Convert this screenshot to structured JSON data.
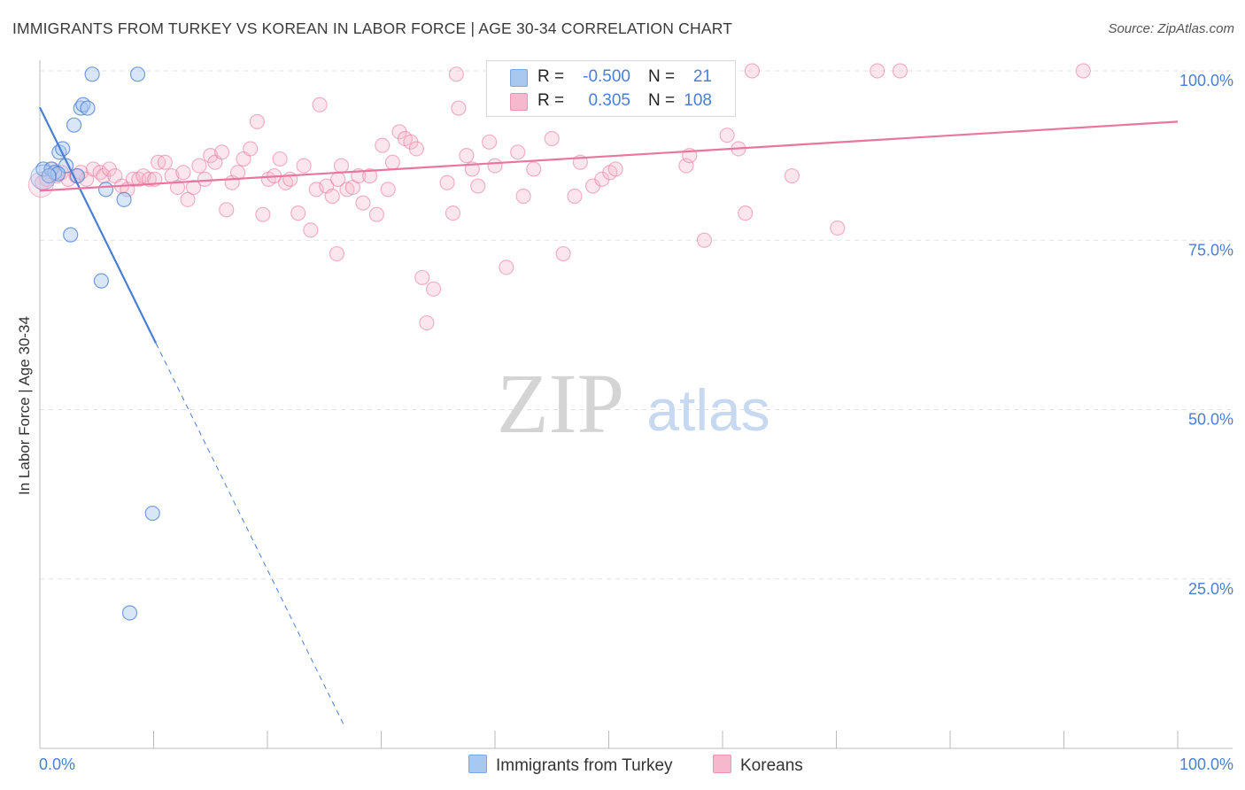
{
  "header": {
    "title": "IMMIGRANTS FROM TURKEY VS KOREAN IN LABOR FORCE | AGE 30-34 CORRELATION CHART",
    "source": "Source: ZipAtlas.com"
  },
  "watermark": {
    "zip": "ZIP",
    "atlas": "atlas"
  },
  "legend": {
    "rows": [
      {
        "r_label": "R =",
        "r_value": "-0.500",
        "n_label": "N =",
        "n_value": "21",
        "color": "#a8c8f0"
      },
      {
        "r_label": "R =",
        "r_value": "0.305",
        "n_label": "N =",
        "n_value": "108",
        "color": "#f6b8cc"
      }
    ]
  },
  "bottom_legend": {
    "series1": "Immigrants from Turkey",
    "series2": "Koreans"
  },
  "chart_data": {
    "type": "scatter",
    "title": "IMMIGRANTS FROM TURKEY VS KOREAN IN LABOR FORCE | AGE 30-34 CORRELATION CHART",
    "xlabel": "",
    "ylabel": "In Labor Force | Age 30-34",
    "xlim": [
      0,
      100
    ],
    "ylim": [
      0,
      100
    ],
    "x_tick_labels": [
      "0.0%",
      "100.0%"
    ],
    "y_ticks": [
      25,
      50,
      75,
      100
    ],
    "y_tick_labels": [
      "25.0%",
      "50.0%",
      "75.0%",
      "100.0%"
    ],
    "grid": true,
    "colors": {
      "series1": "#4a7fd4",
      "series2": "#e8769e",
      "tick_text": "#4a7fd4"
    },
    "series": [
      {
        "name": "Immigrants from Turkey",
        "R": -0.5,
        "N": 21,
        "trend": {
          "x0": 0,
          "y0": 94.6,
          "x_solid_end": 10.2,
          "x_dash_end": 26.8
        },
        "points": [
          [
            0.3,
            85.5
          ],
          [
            1.0,
            85.5
          ],
          [
            1.3,
            85.0
          ],
          [
            1.7,
            88.0
          ],
          [
            2.0,
            88.5
          ],
          [
            2.3,
            86.0
          ],
          [
            2.7,
            75.8
          ],
          [
            3.0,
            92.0
          ],
          [
            3.3,
            84.5
          ],
          [
            3.6,
            94.5
          ],
          [
            3.8,
            95.0
          ],
          [
            4.2,
            94.5
          ],
          [
            4.6,
            99.5
          ],
          [
            5.4,
            69.0
          ],
          [
            5.8,
            82.5
          ],
          [
            7.4,
            81.0
          ],
          [
            7.9,
            20.0
          ],
          [
            8.6,
            99.5
          ],
          [
            9.9,
            34.7
          ],
          [
            1.6,
            84.8
          ],
          [
            0.8,
            84.5
          ]
        ]
      },
      {
        "name": "Koreans",
        "R": 0.305,
        "N": 108,
        "trend": {
          "x0": 0,
          "y0": 82.3,
          "x1": 100,
          "y1": 92.5
        },
        "points": [
          [
            0.2,
            83.5
          ],
          [
            0.6,
            84.0
          ],
          [
            1.1,
            85.5
          ],
          [
            1.5,
            84.5
          ],
          [
            1.9,
            85.0
          ],
          [
            2.5,
            84.0
          ],
          [
            3.2,
            84.5
          ],
          [
            3.6,
            85.0
          ],
          [
            4.1,
            84.0
          ],
          [
            4.7,
            85.5
          ],
          [
            5.3,
            85.0
          ],
          [
            5.6,
            84.5
          ],
          [
            6.1,
            85.5
          ],
          [
            6.6,
            84.5
          ],
          [
            7.2,
            83.0
          ],
          [
            7.7,
            82.5
          ],
          [
            8.2,
            84.0
          ],
          [
            8.7,
            84.0
          ],
          [
            9.1,
            84.5
          ],
          [
            9.6,
            84.0
          ],
          [
            10.1,
            84.0
          ],
          [
            10.4,
            86.5
          ],
          [
            11.0,
            86.5
          ],
          [
            11.6,
            84.5
          ],
          [
            12.1,
            82.8
          ],
          [
            12.6,
            85.0
          ],
          [
            13.0,
            81.0
          ],
          [
            13.5,
            82.8
          ],
          [
            14.0,
            86.0
          ],
          [
            14.5,
            84.0
          ],
          [
            15.0,
            87.5
          ],
          [
            15.4,
            86.5
          ],
          [
            16.0,
            88.0
          ],
          [
            16.4,
            79.5
          ],
          [
            16.9,
            83.5
          ],
          [
            17.4,
            85.0
          ],
          [
            17.9,
            87.0
          ],
          [
            18.5,
            88.5
          ],
          [
            19.1,
            92.5
          ],
          [
            19.6,
            78.8
          ],
          [
            20.1,
            84.0
          ],
          [
            20.6,
            84.5
          ],
          [
            21.1,
            87.0
          ],
          [
            21.6,
            83.5
          ],
          [
            22.0,
            84.0
          ],
          [
            22.7,
            79.0
          ],
          [
            23.2,
            86.0
          ],
          [
            23.8,
            76.5
          ],
          [
            24.3,
            82.5
          ],
          [
            24.6,
            95.0
          ],
          [
            25.2,
            83.0
          ],
          [
            25.7,
            81.5
          ],
          [
            26.1,
            73.0
          ],
          [
            26.5,
            86.0
          ],
          [
            27.0,
            82.5
          ],
          [
            27.5,
            82.8
          ],
          [
            28.0,
            84.5
          ],
          [
            28.4,
            80.5
          ],
          [
            29.0,
            84.5
          ],
          [
            29.6,
            78.8
          ],
          [
            30.1,
            89.0
          ],
          [
            30.6,
            82.5
          ],
          [
            31.0,
            86.5
          ],
          [
            31.6,
            91.0
          ],
          [
            32.1,
            90.0
          ],
          [
            32.6,
            89.5
          ],
          [
            33.1,
            88.5
          ],
          [
            33.6,
            69.5
          ],
          [
            34.0,
            62.8
          ],
          [
            34.6,
            67.8
          ],
          [
            35.8,
            83.5
          ],
          [
            36.3,
            79.0
          ],
          [
            36.8,
            94.5
          ],
          [
            37.5,
            87.5
          ],
          [
            38.0,
            85.5
          ],
          [
            38.5,
            83.0
          ],
          [
            39.5,
            89.5
          ],
          [
            40.0,
            86.0
          ],
          [
            40.5,
            100.0
          ],
          [
            41.0,
            71.0
          ],
          [
            42.0,
            88.0
          ],
          [
            42.5,
            81.5
          ],
          [
            43.4,
            85.5
          ],
          [
            45.0,
            90.0
          ],
          [
            46.0,
            73.0
          ],
          [
            47.0,
            81.5
          ],
          [
            47.5,
            86.5
          ],
          [
            48.6,
            83.0
          ],
          [
            49.4,
            84.0
          ],
          [
            50.1,
            85.0
          ],
          [
            50.6,
            85.5
          ],
          [
            52.0,
            99.5
          ],
          [
            53.2,
            97.5
          ],
          [
            55.0,
            99.5
          ],
          [
            56.8,
            86.0
          ],
          [
            57.1,
            87.5
          ],
          [
            58.4,
            75.0
          ],
          [
            60.4,
            90.5
          ],
          [
            61.4,
            88.5
          ],
          [
            62.0,
            79.0
          ],
          [
            62.6,
            100.0
          ],
          [
            66.1,
            84.5
          ],
          [
            70.1,
            76.8
          ],
          [
            73.6,
            100.0
          ],
          [
            75.6,
            100.0
          ],
          [
            91.7,
            100.0
          ],
          [
            36.6,
            99.5
          ],
          [
            26.2,
            84.0
          ]
        ]
      }
    ]
  }
}
